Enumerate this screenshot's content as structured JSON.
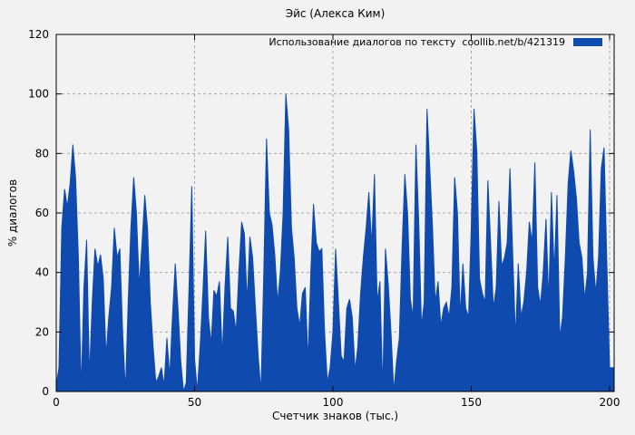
{
  "colors": {
    "background": "#f2f2f2",
    "series_blue": "#0f4aae",
    "grid": "#a6a6a6",
    "frame": "#000000"
  },
  "chart_data": {
    "type": "area",
    "title": "Эйс (Алекса Ким)",
    "xlabel": "Счетчик знаков (тыс.)",
    "ylabel": "% диалогов",
    "xlim": [
      0,
      200
    ],
    "ylim": [
      0,
      120
    ],
    "xticks": [
      0,
      50,
      100,
      150,
      200
    ],
    "yticks": [
      0,
      20,
      40,
      60,
      80,
      100,
      120
    ],
    "grid": true,
    "legend": {
      "label": "Использование диалогов по тексту  coollib.net/b/421319",
      "position": "top-right"
    },
    "series": [
      {
        "name": "Использование диалогов по тексту  coollib.net/b/421319",
        "color": "#0f4aae",
        "x_start": 0,
        "x_step": 1,
        "values": [
          2,
          8,
          55,
          68,
          62,
          70,
          83,
          72,
          45,
          0,
          35,
          51,
          5,
          30,
          48,
          42,
          46,
          38,
          12,
          25,
          35,
          55,
          45,
          48,
          20,
          0,
          30,
          55,
          72,
          60,
          35,
          50,
          66,
          55,
          30,
          15,
          3,
          5,
          8,
          2,
          18,
          5,
          25,
          43,
          28,
          10,
          0,
          3,
          35,
          69,
          11,
          0,
          15,
          33,
          54,
          25,
          16,
          34,
          32,
          37,
          12,
          35,
          52,
          28,
          27,
          20,
          40,
          57,
          53,
          30,
          52,
          45,
          28,
          12,
          0,
          40,
          85,
          60,
          56,
          46,
          30,
          40,
          60,
          100,
          88,
          55,
          45,
          28,
          22,
          33,
          35,
          10,
          40,
          63,
          50,
          47,
          48,
          20,
          3,
          8,
          20,
          48,
          30,
          12,
          10,
          28,
          31,
          25,
          7,
          15,
          33,
          45,
          55,
          67,
          49,
          73,
          30,
          37,
          0,
          48,
          36,
          20,
          0,
          10,
          18,
          49,
          73,
          60,
          31,
          25,
          83,
          58,
          22,
          30,
          95,
          75,
          55,
          30,
          37,
          22,
          28,
          30,
          25,
          35,
          72,
          60,
          25,
          43,
          28,
          25,
          55,
          95,
          81,
          38,
          33,
          30,
          71,
          50,
          28,
          35,
          64,
          42,
          45,
          50,
          75,
          45,
          18,
          43,
          25,
          30,
          40,
          57,
          50,
          77,
          35,
          29,
          40,
          58,
          30,
          67,
          40,
          66,
          18,
          25,
          45,
          70,
          81,
          74,
          65,
          50,
          45,
          31,
          40,
          88,
          45,
          33,
          45,
          75,
          82,
          44,
          8
        ]
      }
    ]
  }
}
